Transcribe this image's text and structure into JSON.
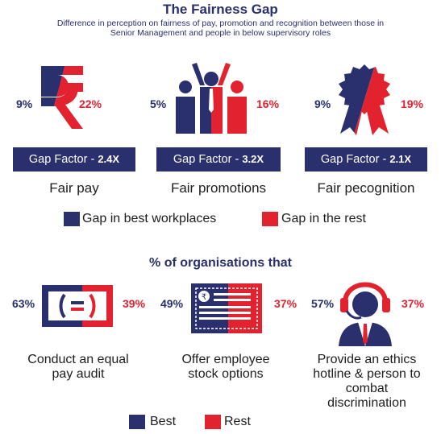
{
  "header": {
    "title": "The Fairness Gap",
    "subtitle_line1": "Difference in perception on fairness of pay, promotion and recognition between those in",
    "subtitle_line2": "Senior Management and people in below supervisory roles"
  },
  "colors": {
    "navy": "#2a2f6e",
    "red": "#e3222f"
  },
  "gap_section": {
    "items": [
      {
        "icon": "rupee-icon",
        "best": "9%",
        "rest": "22%",
        "gap_label": "Gap Factor - ",
        "gap_value": "2.4X",
        "label": "Fair pay"
      },
      {
        "icon": "people-icon",
        "best": "5%",
        "rest": "16%",
        "gap_label": "Gap Factor - ",
        "gap_value": "3.2X",
        "label": "Fair promotions"
      },
      {
        "icon": "rosette-icon",
        "best": "9%",
        "rest": "19%",
        "gap_label": "Gap Factor - ",
        "gap_value": "2.1X",
        "label": "Fair pecognition"
      }
    ],
    "legend": {
      "best": "Gap in best workplaces",
      "rest": "Gap in the rest"
    }
  },
  "org_section": {
    "title": "% of organisations that",
    "items": [
      {
        "icon": "equal-pay-icon",
        "best": "63%",
        "rest": "39%",
        "label_line1": "Conduct an equal",
        "label_line2": "pay audit"
      },
      {
        "icon": "stock-certificate-icon",
        "best": "49%",
        "rest": "37%",
        "label_line1": "Offer employee",
        "label_line2": "stock options"
      },
      {
        "icon": "headset-operator-icon",
        "best": "57%",
        "rest": "37%",
        "label_line1": "Provide an ethics",
        "label_line2": "hotline & person to",
        "label_line3": "combat",
        "label_line4": "discrimination"
      }
    ],
    "legend": {
      "best": "Best",
      "rest": "Rest"
    }
  },
  "chart_data": [
    {
      "type": "bar",
      "title": "The Fairness Gap",
      "categories": [
        "Fair pay",
        "Fair promotions",
        "Fair pecognition"
      ],
      "series": [
        {
          "name": "Gap in best workplaces",
          "values": [
            9,
            5,
            9
          ]
        },
        {
          "name": "Gap in the rest",
          "values": [
            22,
            16,
            19
          ]
        }
      ],
      "gap_factor": [
        "2.4X",
        "3.2X",
        "2.1X"
      ]
    },
    {
      "type": "bar",
      "title": "% of organisations that",
      "categories": [
        "Conduct an equal pay audit",
        "Offer employee stock options",
        "Provide an ethics hotline & person to combat discrimination"
      ],
      "series": [
        {
          "name": "Best",
          "values": [
            63,
            49,
            57
          ]
        },
        {
          "name": "Rest",
          "values": [
            39,
            37,
            37
          ]
        }
      ]
    }
  ]
}
